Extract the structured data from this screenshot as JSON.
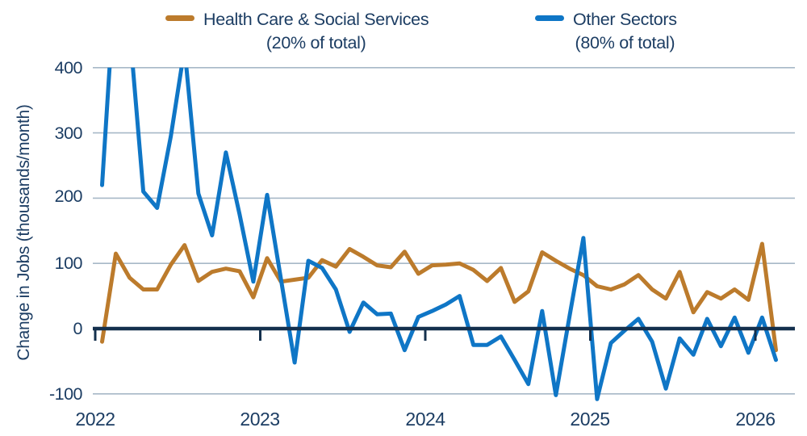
{
  "legend": [
    {
      "label": "Health Care & Social Services",
      "sublabel": "(20% of total)",
      "color": "#bc7b2c"
    },
    {
      "label": "Other Sectors",
      "sublabel": "(80% of total)",
      "color": "#0f76c6"
    }
  ],
  "y_axis": {
    "title": "Change in Jobs (thousands/month)",
    "ticks": [
      {
        "label": "400",
        "value": 400
      },
      {
        "label": "300",
        "value": 300
      },
      {
        "label": "200",
        "value": 200
      },
      {
        "label": "100",
        "value": 100
      },
      {
        "label": "0",
        "value": 0
      },
      {
        "label": "-100",
        "value": -100
      }
    ]
  },
  "x_axis": {
    "ticks": [
      {
        "label": "2022"
      },
      {
        "label": "2023"
      },
      {
        "label": "2024"
      },
      {
        "label": "2025"
      },
      {
        "label": "2026"
      }
    ]
  },
  "colors": {
    "health_care": "#bc7b2c",
    "other_sectors": "#0f76c6",
    "grid": "#a7b8c7",
    "zero_line": "#14304d",
    "text": "#1c3d63"
  },
  "chart_data": {
    "type": "line",
    "title": "",
    "xlabel": "",
    "ylabel": "Change in Jobs (thousands/month)",
    "ylim": [
      -100,
      400
    ],
    "grid": true,
    "legend_position": "top",
    "x": [
      "Jan 2022",
      "Feb 2022",
      "Mar 2022",
      "Apr 2022",
      "May 2022",
      "Jun 2022",
      "Jul 2022",
      "Aug 2022",
      "Sep 2022",
      "Oct 2022",
      "Nov 2022",
      "Dec 2022",
      "Jan 2023",
      "Feb 2023",
      "Mar 2023",
      "Apr 2023",
      "May 2023",
      "Jun 2023",
      "Jul 2023",
      "Aug 2023",
      "Sep 2023",
      "Oct 2023",
      "Nov 2023",
      "Dec 2023",
      "Jan 2024",
      "Feb 2024",
      "Mar 2024",
      "Apr 2024",
      "May 2024",
      "Jun 2024",
      "Jul 2024",
      "Aug 2024",
      "Sep 2024",
      "Oct 2024",
      "Nov 2024",
      "Dec 2024",
      "Jan 2025",
      "Feb 2025",
      "Mar 2025",
      "Apr 2025",
      "May 2025",
      "Jun 2025",
      "Jul 2025",
      "Aug 2025",
      "Sep 2025",
      "Oct 2025",
      "Nov 2025",
      "Dec 2025",
      "Jan 2026",
      "Feb 2026"
    ],
    "series": [
      {
        "name": "Health Care & Social Services (20% of total)",
        "color": "#bc7b2c",
        "values": [
          -20,
          115,
          78,
          60,
          60,
          98,
          128,
          73,
          87,
          92,
          88,
          48,
          108,
          72,
          75,
          78,
          105,
          95,
          122,
          110,
          97,
          94,
          118,
          84,
          97,
          98,
          100,
          90,
          73,
          93,
          41,
          57,
          117,
          104,
          92,
          82,
          65,
          60,
          68,
          82,
          60,
          46,
          87,
          25,
          56,
          46,
          60,
          44,
          130,
          -33
        ]
      },
      {
        "name": "Other Sectors (80% of total)",
        "color": "#0f76c6",
        "values": [
          220,
          550,
          460,
          210,
          185,
          295,
          430,
          207,
          143,
          270,
          175,
          72,
          205,
          77,
          -52,
          104,
          93,
          60,
          -5,
          40,
          22,
          23,
          -33,
          18,
          27,
          37,
          50,
          -25,
          -25,
          -12,
          -48,
          -85,
          27,
          -102,
          20,
          139,
          -108,
          -22,
          -3,
          15,
          -20,
          -92,
          -15,
          -40,
          15,
          -27,
          17,
          -37,
          17,
          -48
        ]
      }
    ],
    "note_values_above_400_clipped": true
  }
}
